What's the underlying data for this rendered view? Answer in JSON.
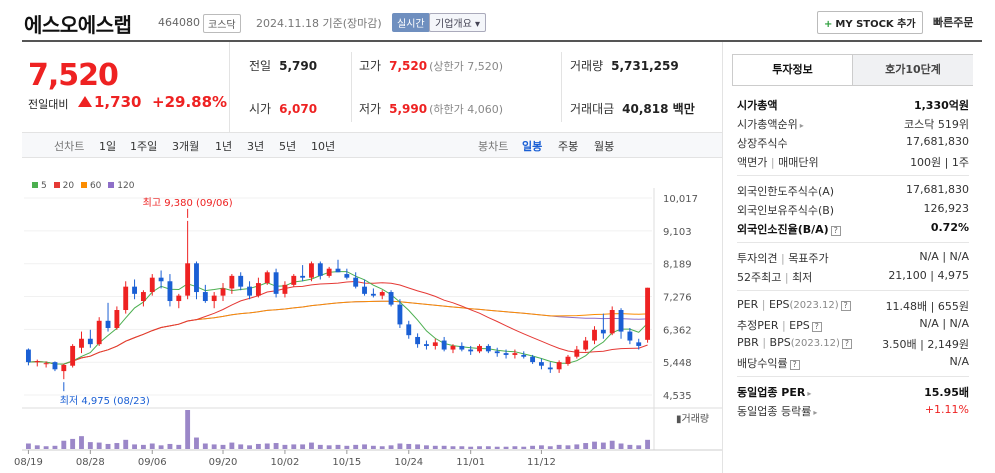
{
  "header": {
    "name": "에스오에스랩",
    "code": "464080",
    "market": "코스닥",
    "date": "2024.11.18 기준(장마감)",
    "realtime": "실시간",
    "overview": "기업개요 ▾",
    "mystock_label": "MY STOCK 추가",
    "quick_order": "빠른주문"
  },
  "price": {
    "current": "7,520",
    "compare_label": "전일대비",
    "change": "1,730",
    "change_pct": "+29.88%"
  },
  "summary": {
    "prev_label": "전일",
    "prev": "5,790",
    "high_label": "고가",
    "high": "7,520",
    "upper_limit": "(상한가 7,520)",
    "volume_label": "거래량",
    "volume": "5,731,259",
    "open_label": "시가",
    "open": "6,070",
    "low_label": "저가",
    "low": "5,990",
    "lower_limit": "(하한가 4,060)",
    "amount_label": "거래대금",
    "amount": "40,818 백만"
  },
  "periods": {
    "line_label": "선차트",
    "line": [
      "1일",
      "1주일",
      "3개월",
      "1년",
      "3년",
      "5년",
      "10년"
    ],
    "candle_label": "봉차트",
    "candle": [
      "일봉",
      "주봉",
      "월봉"
    ],
    "candle_selected": "일봉"
  },
  "chart_data": {
    "type": "candlestick",
    "legend": [
      "5",
      "20",
      "60",
      "120"
    ],
    "legend_colors": [
      "#4caf50",
      "#e53935",
      "#fb8c00",
      "#8e6fc8"
    ],
    "y_ticks": [
      "10,017",
      "9,103",
      "8,189",
      "7,276",
      "6,362",
      "5,448",
      "4,535"
    ],
    "ylim": [
      4535,
      10017
    ],
    "x_labels": [
      "08/19",
      "08/28",
      "09/06",
      "09/20",
      "10/02",
      "10/15",
      "10/24",
      "11/01",
      "11/12"
    ],
    "volume_label": "거래량",
    "max_annotation": "최고 9,380 (09/06)",
    "min_annotation": "최저 4,975 (08/23)",
    "candles": [
      {
        "o": 5800,
        "h": 5830,
        "l": 5360,
        "c": 5450
      },
      {
        "o": 5450,
        "h": 5520,
        "l": 5330,
        "c": 5480
      },
      {
        "o": 5400,
        "h": 5470,
        "l": 5300,
        "c": 5420
      },
      {
        "o": 5450,
        "h": 5470,
        "l": 5200,
        "c": 5250
      },
      {
        "o": 5200,
        "h": 5400,
        "l": 4975,
        "c": 5370
      },
      {
        "o": 5350,
        "h": 5950,
        "l": 5300,
        "c": 5900
      },
      {
        "o": 5850,
        "h": 6300,
        "l": 5700,
        "c": 6100
      },
      {
        "o": 6100,
        "h": 6350,
        "l": 5850,
        "c": 5950
      },
      {
        "o": 5950,
        "h": 6700,
        "l": 5900,
        "c": 6600
      },
      {
        "o": 6600,
        "h": 7100,
        "l": 6300,
        "c": 6400
      },
      {
        "o": 6400,
        "h": 7000,
        "l": 6350,
        "c": 6900
      },
      {
        "o": 6900,
        "h": 7700,
        "l": 6800,
        "c": 7550
      },
      {
        "o": 7550,
        "h": 7750,
        "l": 7200,
        "c": 7350
      },
      {
        "o": 7150,
        "h": 7450,
        "l": 7000,
        "c": 7400
      },
      {
        "o": 7400,
        "h": 7900,
        "l": 7300,
        "c": 7800
      },
      {
        "o": 7800,
        "h": 8000,
        "l": 7500,
        "c": 7700
      },
      {
        "o": 7700,
        "h": 7900,
        "l": 7000,
        "c": 7150
      },
      {
        "o": 7150,
        "h": 7350,
        "l": 6950,
        "c": 7300
      },
      {
        "o": 7300,
        "h": 9380,
        "l": 7200,
        "c": 8200
      },
      {
        "o": 8200,
        "h": 8250,
        "l": 7200,
        "c": 7400
      },
      {
        "o": 7400,
        "h": 7600,
        "l": 7100,
        "c": 7150
      },
      {
        "o": 7150,
        "h": 7400,
        "l": 6950,
        "c": 7300
      },
      {
        "o": 7300,
        "h": 7650,
        "l": 7150,
        "c": 7500
      },
      {
        "o": 7500,
        "h": 7900,
        "l": 7350,
        "c": 7850
      },
      {
        "o": 7850,
        "h": 7950,
        "l": 7450,
        "c": 7550
      },
      {
        "o": 7550,
        "h": 7700,
        "l": 7200,
        "c": 7300
      },
      {
        "o": 7300,
        "h": 7800,
        "l": 7250,
        "c": 7650
      },
      {
        "o": 7650,
        "h": 8000,
        "l": 7600,
        "c": 7950
      },
      {
        "o": 7950,
        "h": 8050,
        "l": 7250,
        "c": 7350
      },
      {
        "o": 7350,
        "h": 7700,
        "l": 7250,
        "c": 7600
      },
      {
        "o": 7600,
        "h": 7900,
        "l": 7550,
        "c": 7850
      },
      {
        "o": 7850,
        "h": 8150,
        "l": 7700,
        "c": 7800
      },
      {
        "o": 7800,
        "h": 8250,
        "l": 7700,
        "c": 8200
      },
      {
        "o": 8200,
        "h": 8250,
        "l": 7750,
        "c": 7850
      },
      {
        "o": 7850,
        "h": 8100,
        "l": 7800,
        "c": 8050
      },
      {
        "o": 8050,
        "h": 8300,
        "l": 7950,
        "c": 7950
      },
      {
        "o": 7900,
        "h": 8050,
        "l": 7750,
        "c": 7800
      },
      {
        "o": 7800,
        "h": 7950,
        "l": 7500,
        "c": 7550
      },
      {
        "o": 7550,
        "h": 7750,
        "l": 7300,
        "c": 7350
      },
      {
        "o": 7350,
        "h": 7500,
        "l": 7250,
        "c": 7300
      },
      {
        "o": 7300,
        "h": 7450,
        "l": 7200,
        "c": 7400
      },
      {
        "o": 7400,
        "h": 7450,
        "l": 7000,
        "c": 7050
      },
      {
        "o": 7050,
        "h": 7200,
        "l": 6400,
        "c": 6500
      },
      {
        "o": 6500,
        "h": 6600,
        "l": 6100,
        "c": 6200
      },
      {
        "o": 6150,
        "h": 6250,
        "l": 5850,
        "c": 5950
      },
      {
        "o": 5950,
        "h": 6050,
        "l": 5800,
        "c": 5900
      },
      {
        "o": 5900,
        "h": 6100,
        "l": 5800,
        "c": 6000
      },
      {
        "o": 6050,
        "h": 6150,
        "l": 5750,
        "c": 5800
      },
      {
        "o": 5800,
        "h": 5950,
        "l": 5700,
        "c": 5900
      },
      {
        "o": 5900,
        "h": 6000,
        "l": 5750,
        "c": 5800
      },
      {
        "o": 5800,
        "h": 5900,
        "l": 5650,
        "c": 5750
      },
      {
        "o": 5750,
        "h": 5950,
        "l": 5700,
        "c": 5900
      },
      {
        "o": 5900,
        "h": 5950,
        "l": 5700,
        "c": 5750
      },
      {
        "o": 5750,
        "h": 5850,
        "l": 5600,
        "c": 5700
      },
      {
        "o": 5700,
        "h": 5800,
        "l": 5550,
        "c": 5650
      },
      {
        "o": 5650,
        "h": 5800,
        "l": 5550,
        "c": 5700
      },
      {
        "o": 5650,
        "h": 5750,
        "l": 5550,
        "c": 5600
      },
      {
        "o": 5600,
        "h": 5650,
        "l": 5400,
        "c": 5450
      },
      {
        "o": 5450,
        "h": 5550,
        "l": 5250,
        "c": 5350
      },
      {
        "o": 5300,
        "h": 5450,
        "l": 5150,
        "c": 5250
      },
      {
        "o": 5250,
        "h": 5500,
        "l": 5150,
        "c": 5450
      },
      {
        "o": 5400,
        "h": 5650,
        "l": 5350,
        "c": 5600
      },
      {
        "o": 5600,
        "h": 5900,
        "l": 5550,
        "c": 5800
      },
      {
        "o": 5800,
        "h": 6150,
        "l": 5750,
        "c": 6050
      },
      {
        "o": 6050,
        "h": 6450,
        "l": 5950,
        "c": 6350
      },
      {
        "o": 6350,
        "h": 6800,
        "l": 6100,
        "c": 6250
      },
      {
        "o": 6250,
        "h": 7000,
        "l": 6200,
        "c": 6900
      },
      {
        "o": 6900,
        "h": 6950,
        "l": 6100,
        "c": 6300
      },
      {
        "o": 6300,
        "h": 6400,
        "l": 5950,
        "c": 6050
      },
      {
        "o": 6000,
        "h": 6100,
        "l": 5800,
        "c": 5900
      },
      {
        "o": 6070,
        "h": 7520,
        "l": 5990,
        "c": 7520
      }
    ],
    "volumes": [
      12,
      8,
      6,
      7,
      18,
      22,
      28,
      15,
      14,
      11,
      13,
      20,
      10,
      9,
      12,
      8,
      11,
      9,
      85,
      25,
      12,
      10,
      9,
      14,
      10,
      8,
      11,
      12,
      13,
      9,
      10,
      10,
      14,
      9,
      8,
      9,
      7,
      9,
      10,
      7,
      6,
      8,
      12,
      11,
      10,
      8,
      7,
      7,
      6,
      6,
      5,
      6,
      6,
      5,
      5,
      6,
      5,
      7,
      8,
      6,
      9,
      8,
      10,
      13,
      16,
      14,
      18,
      12,
      9,
      8,
      20
    ]
  },
  "info": {
    "tab_active": "투자정보",
    "tab_other": "호가10단계",
    "market_cap_label": "시가총액",
    "market_cap": "1,330억원",
    "cap_rank_label": "시가총액순위",
    "cap_rank": "코스닥 519위",
    "shares_label": "상장주식수",
    "shares": "17,681,830",
    "par_label": "액면가",
    "unit_label": "매매단위",
    "par_unit": "100원 | 1주",
    "foreign_limit_label": "외국인한도주식수(A)",
    "foreign_limit": "17,681,830",
    "foreign_own_label": "외국인보유주식수(B)",
    "foreign_own": "126,923",
    "foreign_ratio_label": "외국인소진율(B/A)",
    "foreign_ratio": "0.72%",
    "opinion_label": "투자의견",
    "target_label": "목표주가",
    "opinion_target": "N/A | N/A",
    "week52_high_label": "52주최고",
    "week52_low_label": "최저",
    "week52": "21,100 | 4,975",
    "per_label": "PER",
    "eps_label": "EPS",
    "per_eps_date": "(2023.12)",
    "per_eps": "11.48배 | 655원",
    "est_per_label": "추정PER",
    "est_eps_label": "EPS",
    "est": "N/A | N/A",
    "pbr_label": "PBR",
    "bps_label": "BPS",
    "pbr_bps_date": "(2023.12)",
    "pbr_bps": "3.50배 | 2,149원",
    "dividend_label": "배당수익률",
    "dividend": "N/A",
    "sector_per_label": "동일업종 PER",
    "sector_per": "15.95배",
    "sector_change_label": "동일업종 등락률",
    "sector_change": "+1.11%"
  }
}
